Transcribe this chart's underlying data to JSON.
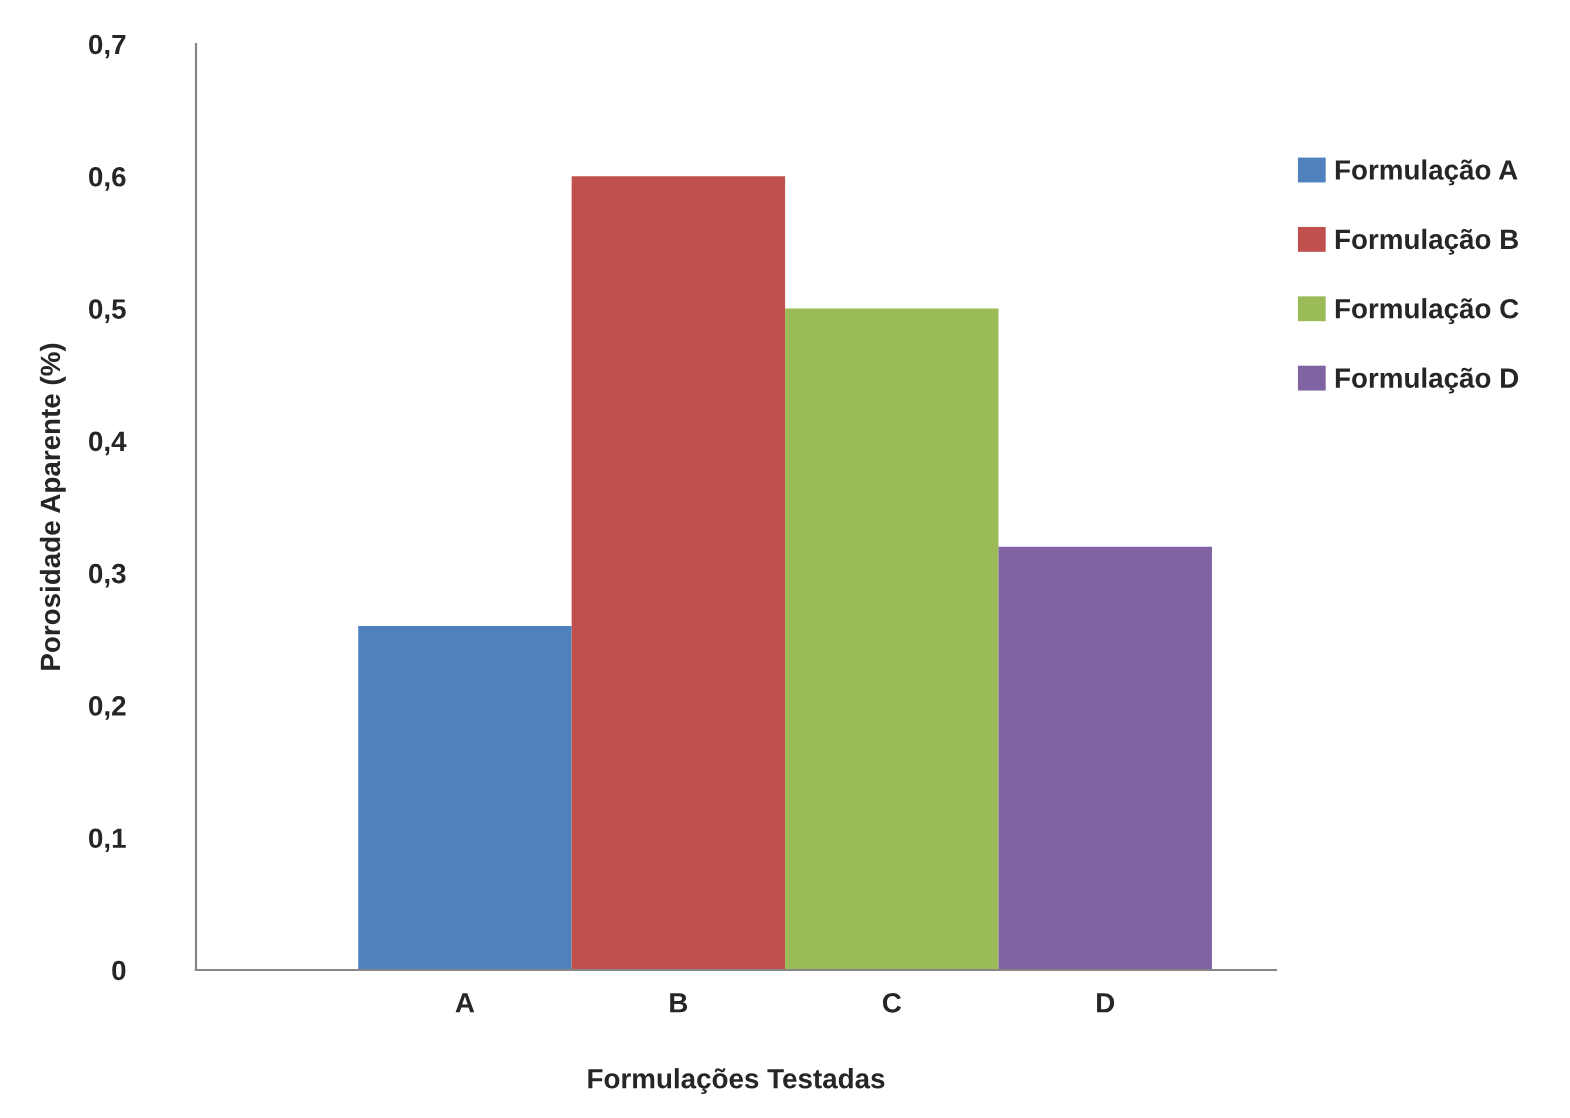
{
  "chart_data": {
    "type": "bar",
    "xlabel": "Formulações Testadas",
    "ylabel": "Porosidade Aparente (%)",
    "categories": [
      "A",
      "B",
      "C",
      "D"
    ],
    "series": [
      {
        "name": "Formulação A",
        "color": "#4f81bd",
        "values": [
          0.26,
          null,
          null,
          null
        ]
      },
      {
        "name": "Formulação B",
        "color": "#c0504d",
        "values": [
          null,
          0.6,
          null,
          null
        ]
      },
      {
        "name": "Formulação C",
        "color": "#9bbb59",
        "values": [
          null,
          null,
          0.5,
          null
        ]
      },
      {
        "name": "Formulação D",
        "color": "#8064a2",
        "values": [
          null,
          null,
          null,
          0.32
        ]
      }
    ],
    "ylim": [
      0,
      0.7
    ],
    "yticks": [
      0,
      {
        "value": 0.1,
        "label": "0,1"
      },
      {
        "value": 0.2,
        "label": "0,2"
      },
      {
        "value": 0.3,
        "label": "0,3"
      },
      {
        "value": 0.4,
        "label": "0,4"
      },
      {
        "value": 0.5,
        "label": "0,5"
      },
      {
        "value": 0.6,
        "label": "0,6"
      },
      {
        "value": 0.7,
        "label": "0,7"
      }
    ],
    "grid": false,
    "legend": "right"
  }
}
